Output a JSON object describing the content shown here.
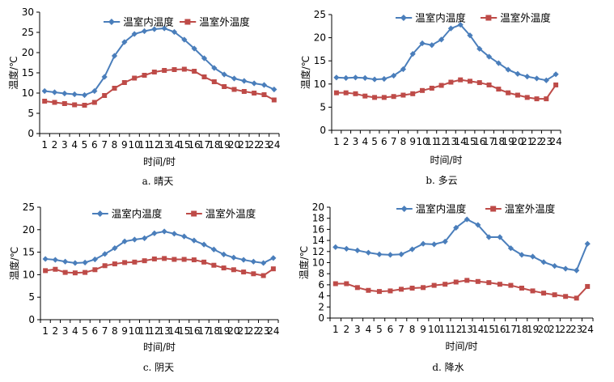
{
  "colors": {
    "inside": "#4a7ebb",
    "outside": "#be4b48"
  },
  "chart_data": [
    {
      "type": "line",
      "caption": "a. 晴天",
      "xlabel": "时间/时",
      "ylabel": "温度/℃",
      "x": [
        1,
        2,
        3,
        4,
        5,
        6,
        7,
        8,
        9,
        10,
        11,
        12,
        13,
        14,
        15,
        16,
        17,
        18,
        19,
        20,
        21,
        22,
        23,
        24
      ],
      "ylim": [
        0,
        30
      ],
      "yticks": [
        0,
        5,
        10,
        15,
        20,
        25,
        30
      ],
      "legend_position": "top-right",
      "series": [
        {
          "name": "温室内温度",
          "marker": "diamond",
          "values": [
            10.5,
            10.2,
            9.9,
            9.7,
            9.5,
            10.5,
            14,
            19.2,
            22.6,
            24.6,
            25.3,
            25.8,
            26,
            25.1,
            23.2,
            21,
            18.6,
            16.2,
            14.6,
            13.6,
            13,
            12.4,
            12,
            10.9
          ]
        },
        {
          "name": "温室外温度",
          "marker": "square",
          "values": [
            8,
            7.7,
            7.4,
            7.1,
            7,
            7.7,
            9.4,
            11.2,
            12.6,
            13.7,
            14.4,
            15.2,
            15.6,
            15.8,
            15.9,
            15.4,
            14,
            12.8,
            11.6,
            10.9,
            10.4,
            10,
            9.6,
            8.3
          ]
        }
      ]
    },
    {
      "type": "line",
      "caption": "b. 多云",
      "xlabel": "时间/时",
      "ylabel": "温度/℃",
      "x": [
        1,
        2,
        3,
        4,
        5,
        6,
        7,
        8,
        9,
        10,
        11,
        12,
        13,
        14,
        15,
        16,
        17,
        18,
        19,
        20,
        21,
        22,
        23,
        24
      ],
      "ylim": [
        0,
        25
      ],
      "yticks": [
        0,
        5,
        10,
        15,
        20,
        25
      ],
      "legend_position": "top-right",
      "series": [
        {
          "name": "温室内温度",
          "marker": "diamond",
          "values": [
            11.4,
            11.3,
            11.4,
            11.3,
            11,
            11.1,
            11.8,
            13.2,
            16.5,
            18.8,
            18.4,
            19.6,
            22,
            22.8,
            20.5,
            17.6,
            15.9,
            14.5,
            13.1,
            12.2,
            11.6,
            11.2,
            10.8,
            12.1
          ]
        },
        {
          "name": "温室外温度",
          "marker": "square",
          "values": [
            8.1,
            8.1,
            7.9,
            7.4,
            7.1,
            7.1,
            7.3,
            7.6,
            7.9,
            8.6,
            9.1,
            9.7,
            10.4,
            10.9,
            10.6,
            10.3,
            9.8,
            8.9,
            8.1,
            7.6,
            7.1,
            6.8,
            6.8,
            9.8
          ]
        }
      ]
    },
    {
      "type": "line",
      "caption": "c. 阴天",
      "xlabel": "时间/时",
      "ylabel": "温度/℃",
      "x": [
        1,
        2,
        3,
        4,
        5,
        6,
        7,
        8,
        9,
        10,
        11,
        12,
        13,
        14,
        15,
        16,
        17,
        18,
        19,
        20,
        21,
        22,
        23,
        24
      ],
      "ylim": [
        0,
        25
      ],
      "yticks": [
        0,
        5,
        10,
        15,
        20,
        25
      ],
      "legend_position": "top",
      "series": [
        {
          "name": "温室内温度",
          "marker": "diamond",
          "values": [
            13.5,
            13.3,
            12.9,
            12.6,
            12.7,
            13.4,
            14.6,
            15.9,
            17.4,
            17.8,
            18.1,
            19.2,
            19.6,
            19.1,
            18.5,
            17.6,
            16.7,
            15.6,
            14.5,
            13.8,
            13.3,
            12.9,
            12.6,
            13.7
          ]
        },
        {
          "name": "温室外温度",
          "marker": "square",
          "values": [
            10.9,
            11.2,
            10.5,
            10.4,
            10.5,
            11.1,
            12,
            12.4,
            12.7,
            12.8,
            13.1,
            13.5,
            13.6,
            13.4,
            13.4,
            13.3,
            12.8,
            12.1,
            11.5,
            11.1,
            10.6,
            10.2,
            9.8,
            11.3
          ]
        }
      ]
    },
    {
      "type": "line",
      "caption": "d. 降水",
      "xlabel": "时间/时",
      "ylabel": "温度/℃",
      "x": [
        1,
        2,
        3,
        4,
        5,
        6,
        7,
        8,
        9,
        10,
        11,
        12,
        13,
        14,
        15,
        16,
        17,
        18,
        19,
        20,
        21,
        22,
        23,
        24
      ],
      "ylim": [
        0,
        20
      ],
      "yticks": [
        0,
        2,
        4,
        6,
        8,
        10,
        12,
        14,
        16,
        18,
        20
      ],
      "legend_position": "top",
      "series": [
        {
          "name": "温室内温度",
          "marker": "diamond",
          "values": [
            12.8,
            12.5,
            12.2,
            11.8,
            11.5,
            11.4,
            11.5,
            12.4,
            13.4,
            13.3,
            13.8,
            16.3,
            17.8,
            16.8,
            14.6,
            14.6,
            12.6,
            11.4,
            11.1,
            10.1,
            9.4,
            8.9,
            8.6,
            13.4
          ]
        },
        {
          "name": "温室外温度",
          "marker": "square",
          "values": [
            6.2,
            6.2,
            5.5,
            5,
            4.8,
            4.9,
            5.2,
            5.4,
            5.5,
            5.9,
            6.1,
            6.5,
            6.8,
            6.6,
            6.4,
            6.1,
            5.9,
            5.4,
            4.9,
            4.5,
            4.2,
            3.9,
            3.6,
            5.7
          ]
        }
      ]
    }
  ]
}
